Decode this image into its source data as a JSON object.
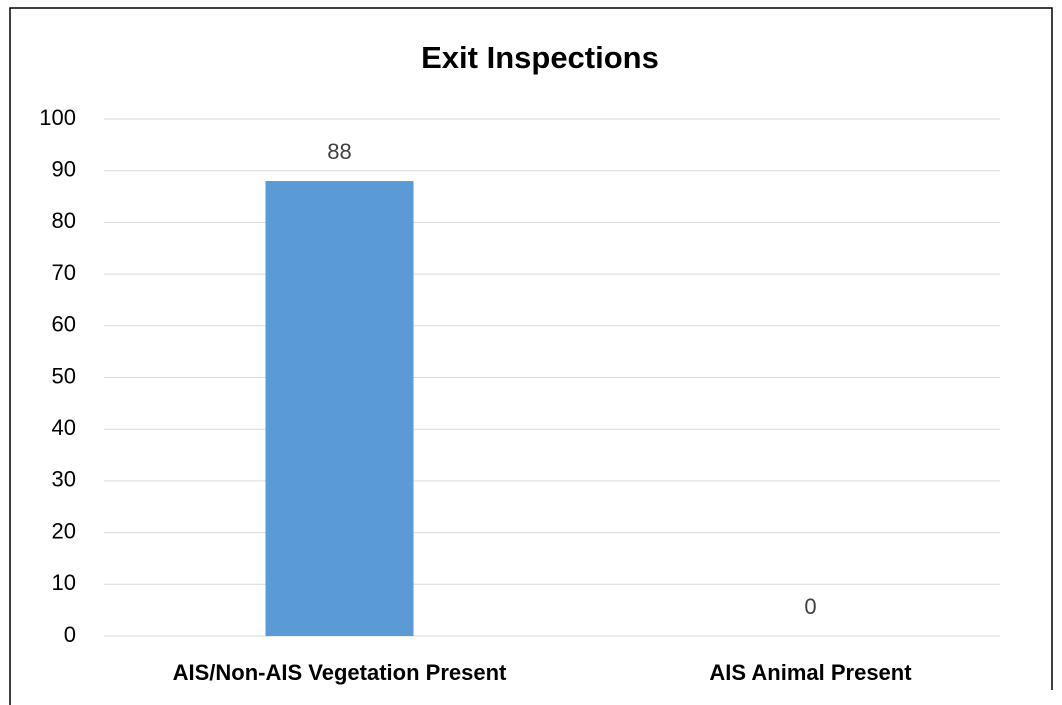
{
  "chart_data": {
    "type": "bar",
    "title": "Exit Inspections",
    "categories": [
      "AIS/Non-AIS Vegetation Present",
      "AIS Animal Present"
    ],
    "values": [
      88,
      0
    ],
    "color": "#5b9bd5",
    "ylim": [
      0,
      100
    ],
    "yticks": [
      0,
      10,
      20,
      30,
      40,
      50,
      60,
      70,
      80,
      90,
      100
    ],
    "grid": true
  }
}
